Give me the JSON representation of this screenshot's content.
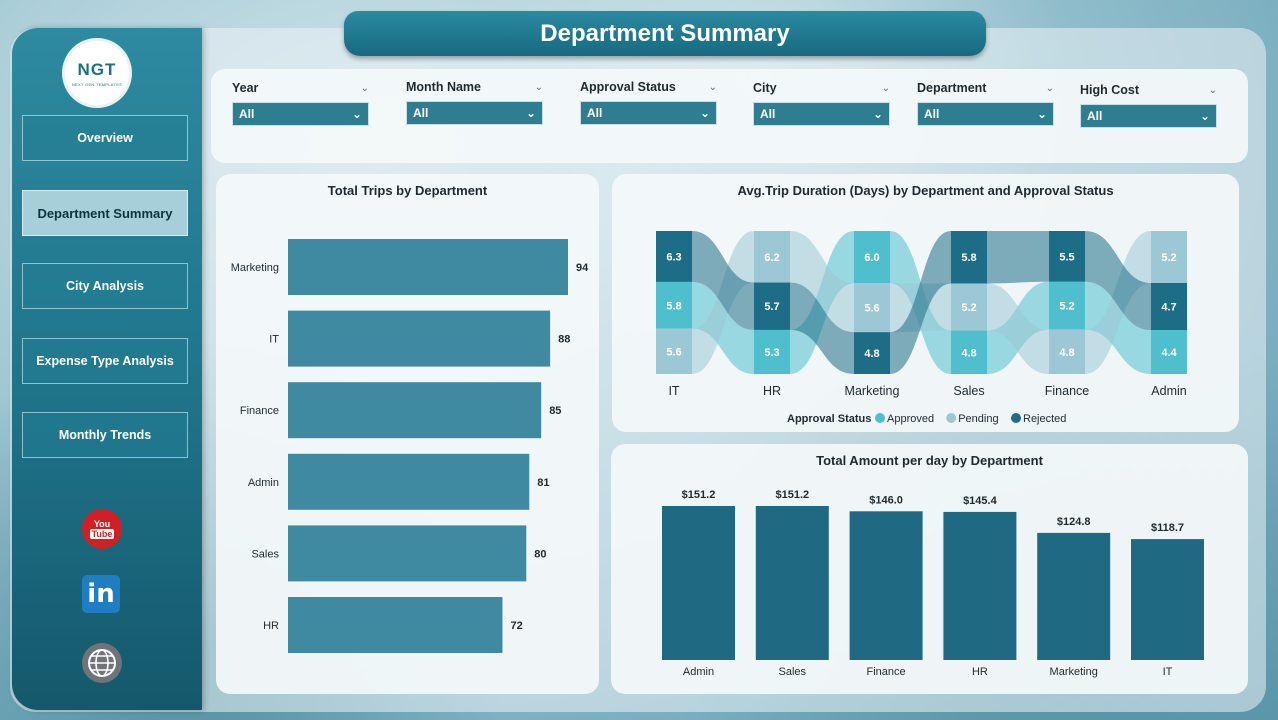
{
  "header": {
    "title": "Department Summary"
  },
  "logo": {
    "mark": "NGT",
    "sub": "NEXT GEN TEMPLATES"
  },
  "nav": {
    "overview": "Overview",
    "department_summary": "Department Summary",
    "city_analysis": "City Analysis",
    "expense_type_analysis": "Expense Type Analysis",
    "monthly_trends": "Monthly Trends"
  },
  "social": {
    "youtube_you": "You",
    "youtube_tube": "Tube",
    "linkedin": "in"
  },
  "slicers": [
    {
      "label": "Year",
      "value": "All"
    },
    {
      "label": "Month Name",
      "value": "All"
    },
    {
      "label": "Approval Status",
      "value": "All"
    },
    {
      "label": "City",
      "value": "All"
    },
    {
      "label": "Department",
      "value": "All"
    },
    {
      "label": "High Cost",
      "value": "All"
    }
  ],
  "colors": {
    "bar": "#3f8aa0",
    "approved": "#4fbfcd",
    "pending": "#9cc8d6",
    "rejected": "#1e6d86",
    "column": "#1f6a82"
  },
  "chart_data": [
    {
      "type": "bar",
      "title": "Total Trips by Department",
      "categories": [
        "Marketing",
        "IT",
        "Finance",
        "Admin",
        "Sales",
        "HR"
      ],
      "values": [
        94,
        88,
        85,
        81,
        80,
        72
      ]
    },
    {
      "type": "ribbon",
      "title": "Avg.Trip Duration (Days) by Department and Approval Status",
      "legend_title": "Approval Status",
      "categories": [
        "IT",
        "HR",
        "Marketing",
        "Sales",
        "Finance",
        "Admin"
      ],
      "series": [
        {
          "name": "Approved",
          "values": [
            5.8,
            5.3,
            6.0,
            4.8,
            5.2,
            4.4
          ]
        },
        {
          "name": "Pending",
          "values": [
            5.6,
            6.2,
            5.6,
            5.2,
            4.8,
            5.2
          ]
        },
        {
          "name": "Rejected",
          "values": [
            6.3,
            5.7,
            4.8,
            5.8,
            5.5,
            4.7
          ]
        }
      ]
    },
    {
      "type": "bar",
      "title": "Total Amount per day by Department",
      "categories": [
        "Admin",
        "Sales",
        "Finance",
        "HR",
        "Marketing",
        "IT"
      ],
      "values": [
        151.2,
        151.2,
        146.0,
        145.4,
        124.8,
        118.7
      ],
      "labels": [
        "$151.2",
        "$151.2",
        "$146.0",
        "$145.4",
        "$124.8",
        "$118.7"
      ]
    }
  ]
}
